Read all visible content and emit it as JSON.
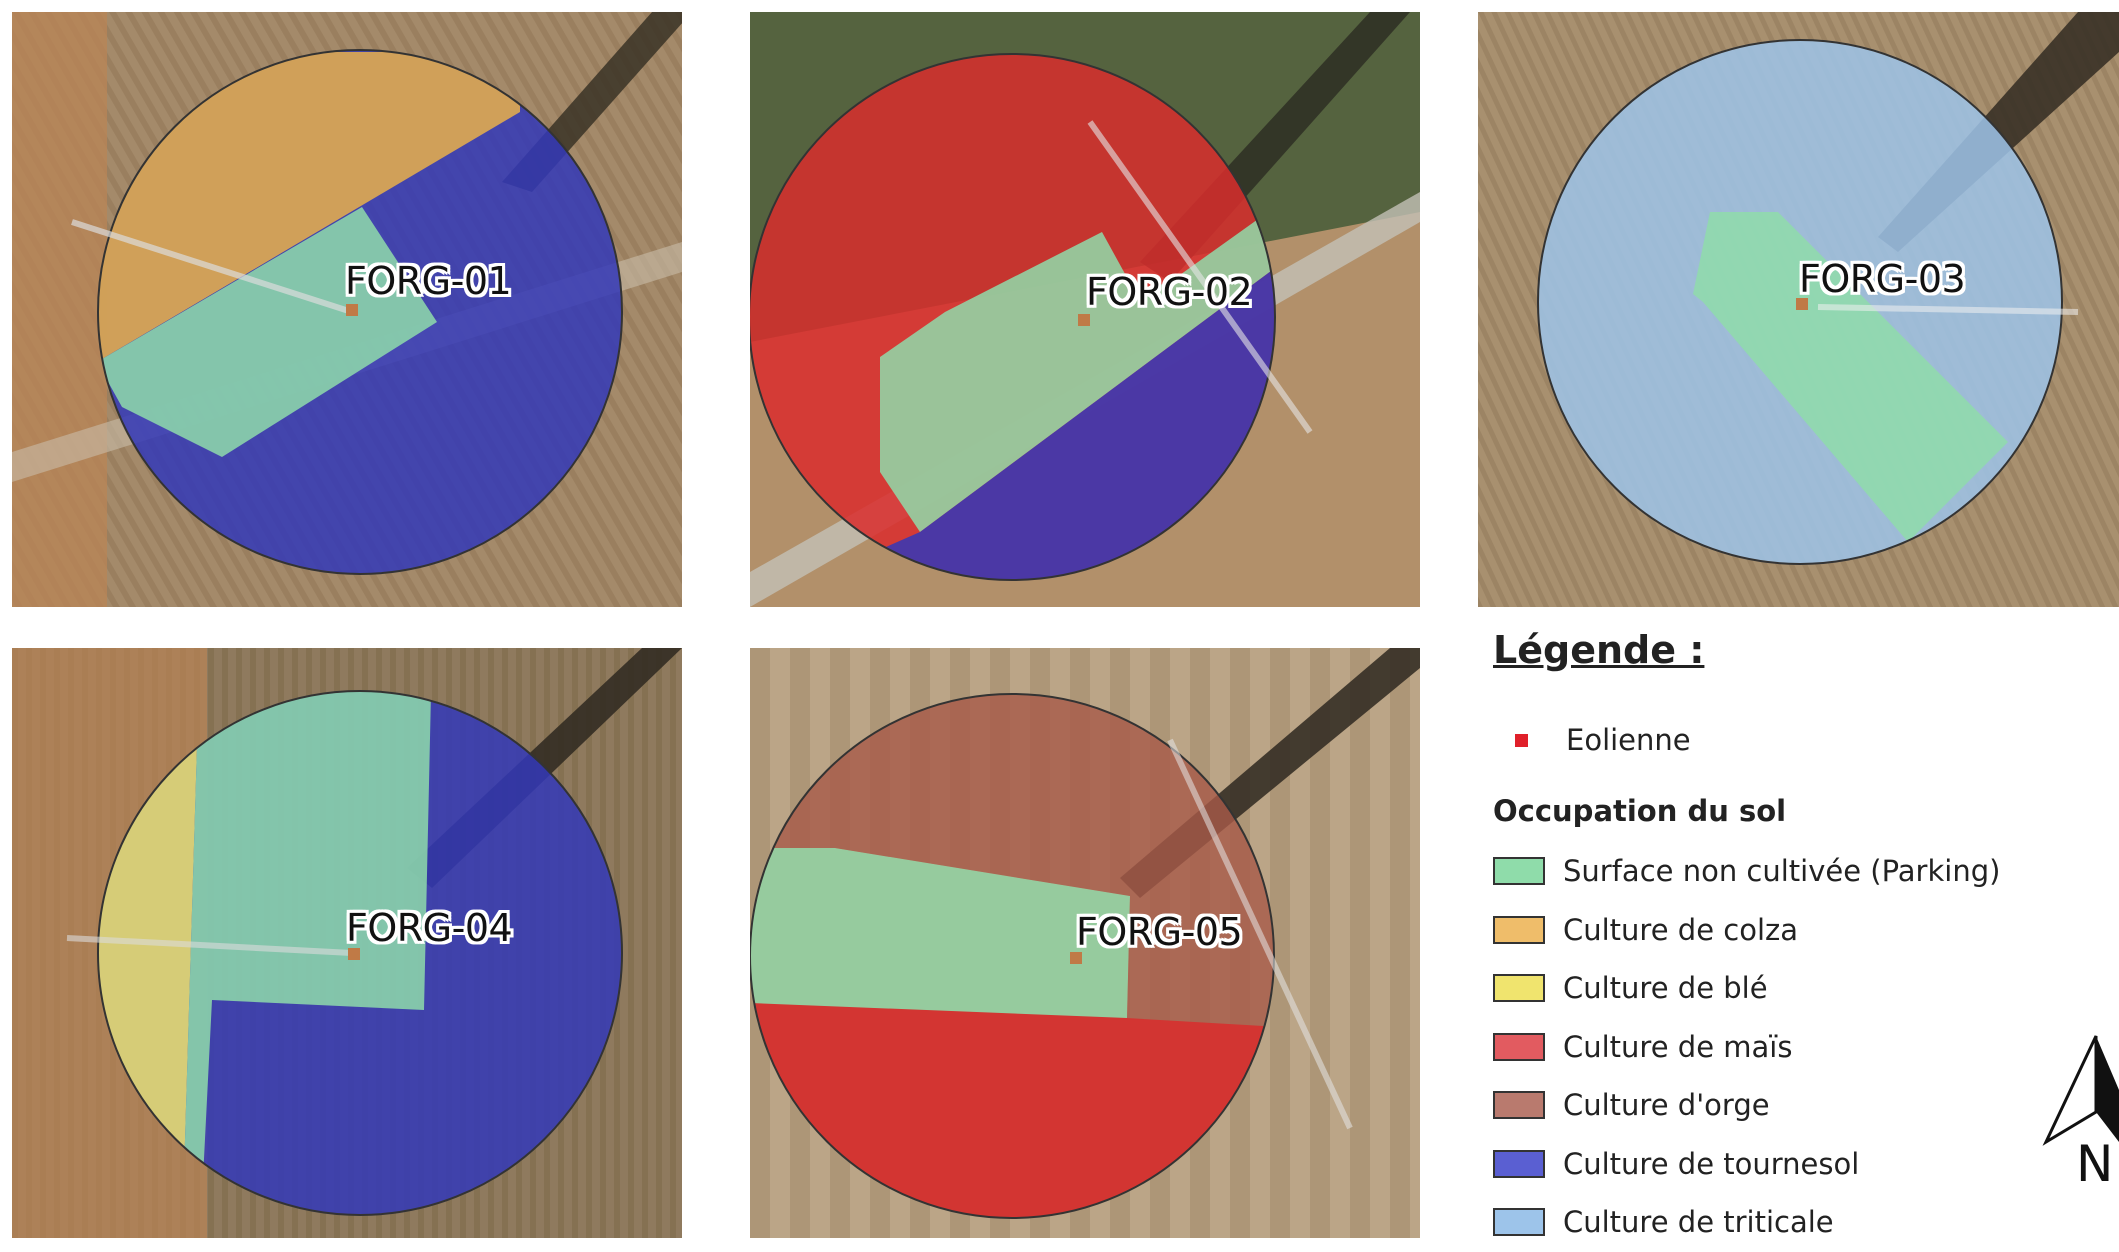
{
  "sites": [
    {
      "id": "forg-01",
      "label": "FORG-01"
    },
    {
      "id": "forg-02",
      "label": "FORG-02"
    },
    {
      "id": "forg-03",
      "label": "FORG-03"
    },
    {
      "id": "forg-04",
      "label": "FORG-04"
    },
    {
      "id": "forg-05",
      "label": "FORG-05"
    }
  ],
  "legend": {
    "title": "Légende :",
    "turbine": {
      "label": "Eolienne",
      "color": "#e0202a"
    },
    "subtitle": "Occupation du sol",
    "items": [
      {
        "label": "Surface non cultivée (Parking)",
        "color": "#8fdcaa"
      },
      {
        "label": "Culture de colza",
        "color": "#efbd6a"
      },
      {
        "label": "Culture de blé",
        "color": "#f0e46e"
      },
      {
        "label": "Culture de maïs",
        "color": "#e25b60"
      },
      {
        "label": "Culture d'orge",
        "color": "#b97a6e"
      },
      {
        "label": "Culture de tournesol",
        "color": "#5a5fd2"
      },
      {
        "label": "Culture de triticale",
        "color": "#9dc4ea"
      }
    ]
  },
  "north_arrow": {
    "label": "N"
  }
}
